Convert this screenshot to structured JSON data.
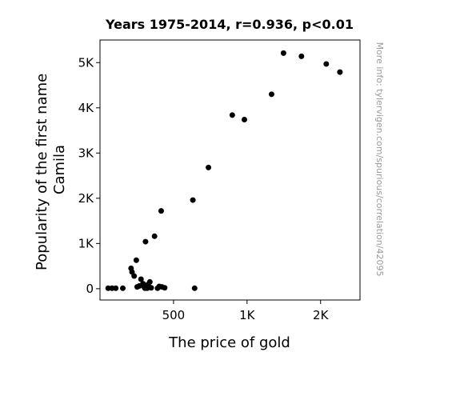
{
  "chart_data": {
    "type": "scatter",
    "title": "Years 1975-2014, r=0.936, p<0.01",
    "xlabel": "The price of gold",
    "ylabel_lines": [
      "Popularity of the first name",
      "Camila"
    ],
    "watermark": "More info: tylervigen.com/spurious/correlation/42095",
    "x_scale": "log",
    "xlim": [
      250,
      2900
    ],
    "ylim": [
      -250,
      5500
    ],
    "x_ticks": [
      {
        "value": 500,
        "label": "500"
      },
      {
        "value": 1000,
        "label": "1K"
      },
      {
        "value": 2000,
        "label": "2K"
      }
    ],
    "y_ticks": [
      {
        "value": 0,
        "label": "0"
      },
      {
        "value": 1000,
        "label": "1K"
      },
      {
        "value": 2000,
        "label": "2K"
      },
      {
        "value": 3000,
        "label": "3K"
      },
      {
        "value": 4000,
        "label": "4K"
      },
      {
        "value": 5000,
        "label": "5K"
      }
    ],
    "grid": false,
    "legend": "none",
    "marker_color": "#000000",
    "points": [
      {
        "x": 270,
        "y": 10
      },
      {
        "x": 280,
        "y": 10
      },
      {
        "x": 290,
        "y": 10
      },
      {
        "x": 310,
        "y": 10
      },
      {
        "x": 335,
        "y": 450
      },
      {
        "x": 338,
        "y": 370
      },
      {
        "x": 345,
        "y": 280
      },
      {
        "x": 352,
        "y": 630
      },
      {
        "x": 355,
        "y": 40
      },
      {
        "x": 362,
        "y": 60
      },
      {
        "x": 368,
        "y": 210
      },
      {
        "x": 375,
        "y": 110
      },
      {
        "x": 380,
        "y": 30
      },
      {
        "x": 382,
        "y": 10
      },
      {
        "x": 384,
        "y": 1040
      },
      {
        "x": 387,
        "y": 60
      },
      {
        "x": 390,
        "y": 10
      },
      {
        "x": 393,
        "y": 90
      },
      {
        "x": 397,
        "y": 30
      },
      {
        "x": 400,
        "y": 150
      },
      {
        "x": 405,
        "y": 20
      },
      {
        "x": 418,
        "y": 1160
      },
      {
        "x": 430,
        "y": 10
      },
      {
        "x": 437,
        "y": 50
      },
      {
        "x": 445,
        "y": 1720
      },
      {
        "x": 460,
        "y": 20
      },
      {
        "x": 448,
        "y": 40
      },
      {
        "x": 600,
        "y": 1960
      },
      {
        "x": 610,
        "y": 10
      },
      {
        "x": 695,
        "y": 2680
      },
      {
        "x": 870,
        "y": 3840
      },
      {
        "x": 975,
        "y": 3740
      },
      {
        "x": 1260,
        "y": 4300
      },
      {
        "x": 1410,
        "y": 5210
      },
      {
        "x": 1670,
        "y": 5140
      },
      {
        "x": 2110,
        "y": 4970
      },
      {
        "x": 2400,
        "y": 4790
      }
    ]
  }
}
